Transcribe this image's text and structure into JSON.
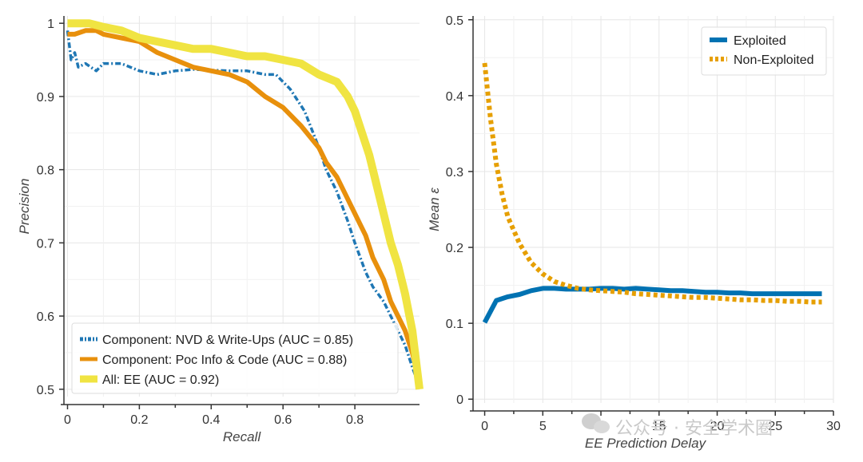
{
  "chart_data": [
    {
      "type": "line",
      "xlabel": "Recall",
      "ylabel": "Precision",
      "xlim": [
        -0.01,
        0.98
      ],
      "ylim": [
        0.49,
        1.01
      ],
      "xticks": [
        0,
        0.2,
        0.4,
        0.6,
        0.8
      ],
      "xtick_labels": [
        "0",
        "0.2",
        "0.4",
        "0.6",
        "0.8"
      ],
      "yticks": [
        0.5,
        0.6,
        0.7,
        0.8,
        0.9,
        1.0
      ],
      "ytick_labels": [
        "0.5",
        "0.6",
        "0.7",
        "0.8",
        "0.9",
        "1"
      ],
      "grid": true,
      "legend_position": "bottom-left",
      "series": [
        {
          "name": "Component: NVD & Write-Ups (AUC = 0.85)",
          "color": "#1f77b4",
          "style": "dashdot",
          "x": [
            0,
            0.01,
            0.02,
            0.03,
            0.05,
            0.08,
            0.1,
            0.15,
            0.2,
            0.25,
            0.3,
            0.35,
            0.4,
            0.45,
            0.5,
            0.55,
            0.58,
            0.62,
            0.66,
            0.7,
            0.72,
            0.75,
            0.78,
            0.8,
            0.83,
            0.85,
            0.88,
            0.9,
            0.92,
            0.94,
            0.96,
            0.975
          ],
          "y": [
            0.99,
            0.95,
            0.96,
            0.94,
            0.945,
            0.935,
            0.945,
            0.945,
            0.935,
            0.93,
            0.935,
            0.937,
            0.936,
            0.935,
            0.935,
            0.93,
            0.93,
            0.91,
            0.88,
            0.83,
            0.8,
            0.77,
            0.73,
            0.7,
            0.66,
            0.64,
            0.62,
            0.6,
            0.58,
            0.56,
            0.53,
            0.51
          ]
        },
        {
          "name": "Component: Poc Info & Code (AUC = 0.88)",
          "color": "#e8900c",
          "style": "solid",
          "x": [
            0,
            0.02,
            0.05,
            0.08,
            0.1,
            0.15,
            0.2,
            0.25,
            0.3,
            0.35,
            0.4,
            0.45,
            0.5,
            0.55,
            0.6,
            0.65,
            0.7,
            0.72,
            0.75,
            0.78,
            0.8,
            0.83,
            0.85,
            0.88,
            0.9,
            0.92,
            0.94,
            0.96,
            0.975
          ],
          "y": [
            0.985,
            0.985,
            0.99,
            0.99,
            0.985,
            0.98,
            0.975,
            0.96,
            0.95,
            0.94,
            0.935,
            0.93,
            0.92,
            0.9,
            0.885,
            0.86,
            0.83,
            0.81,
            0.79,
            0.76,
            0.74,
            0.71,
            0.68,
            0.65,
            0.62,
            0.6,
            0.58,
            0.55,
            0.52
          ]
        },
        {
          "name": "All: EE (AUC = 0.92)",
          "color": "#f0e442",
          "style": "solid",
          "x": [
            0,
            0.03,
            0.06,
            0.1,
            0.15,
            0.2,
            0.25,
            0.3,
            0.35,
            0.4,
            0.45,
            0.5,
            0.55,
            0.6,
            0.65,
            0.7,
            0.75,
            0.78,
            0.8,
            0.82,
            0.84,
            0.85,
            0.86,
            0.88,
            0.9,
            0.92,
            0.94,
            0.96,
            0.98
          ],
          "y": [
            1.0,
            1.0,
            1.0,
            0.995,
            0.99,
            0.98,
            0.975,
            0.97,
            0.965,
            0.965,
            0.96,
            0.955,
            0.955,
            0.95,
            0.945,
            0.93,
            0.92,
            0.9,
            0.88,
            0.85,
            0.82,
            0.8,
            0.78,
            0.74,
            0.7,
            0.67,
            0.63,
            0.58,
            0.5
          ]
        }
      ]
    },
    {
      "type": "line",
      "xlabel": "EE Prediction Delay",
      "ylabel": "Mean ε",
      "xlim": [
        -1,
        30
      ],
      "ylim": [
        -0.005,
        0.505
      ],
      "xticks": [
        0,
        5,
        10,
        15,
        20,
        25,
        30
      ],
      "xtick_labels": [
        "0",
        "5",
        "10",
        "15",
        "20",
        "25",
        "30"
      ],
      "yticks": [
        0,
        0.1,
        0.2,
        0.3,
        0.4,
        0.5
      ],
      "ytick_labels": [
        "0",
        "0.1",
        "0.2",
        "0.3",
        "0.4",
        "0.5"
      ],
      "grid": true,
      "legend_position": "top-right",
      "series": [
        {
          "name": "Exploited",
          "color": "#0072b2",
          "style": "solid",
          "x": [
            0,
            1,
            2,
            3,
            4,
            5,
            6,
            7,
            8,
            9,
            10,
            11,
            12,
            13,
            14,
            15,
            16,
            17,
            18,
            19,
            20,
            21,
            22,
            23,
            24,
            25,
            26,
            27,
            28,
            29
          ],
          "y": [
            0.101,
            0.13,
            0.135,
            0.138,
            0.143,
            0.146,
            0.146,
            0.145,
            0.145,
            0.145,
            0.146,
            0.146,
            0.145,
            0.146,
            0.145,
            0.144,
            0.143,
            0.143,
            0.142,
            0.141,
            0.141,
            0.14,
            0.14,
            0.139,
            0.139,
            0.139,
            0.139,
            0.139,
            0.139,
            0.139
          ]
        },
        {
          "name": "Non-Exploited",
          "color": "#e69f00",
          "style": "dotted",
          "x": [
            0,
            0.5,
            1,
            1.5,
            2,
            3,
            4,
            5,
            6,
            7,
            8,
            9,
            10,
            11,
            12,
            13,
            14,
            15,
            16,
            17,
            18,
            19,
            20,
            21,
            22,
            23,
            24,
            25,
            26,
            27,
            28,
            29
          ],
          "y": [
            0.443,
            0.37,
            0.31,
            0.27,
            0.24,
            0.205,
            0.18,
            0.165,
            0.155,
            0.15,
            0.146,
            0.144,
            0.143,
            0.142,
            0.141,
            0.139,
            0.138,
            0.137,
            0.136,
            0.135,
            0.134,
            0.134,
            0.133,
            0.132,
            0.131,
            0.131,
            0.13,
            0.13,
            0.129,
            0.129,
            0.128,
            0.128
          ]
        }
      ]
    }
  ],
  "watermark": {
    "text": "公众号 · 安全学术圈",
    "icon": "wechat-icon"
  }
}
